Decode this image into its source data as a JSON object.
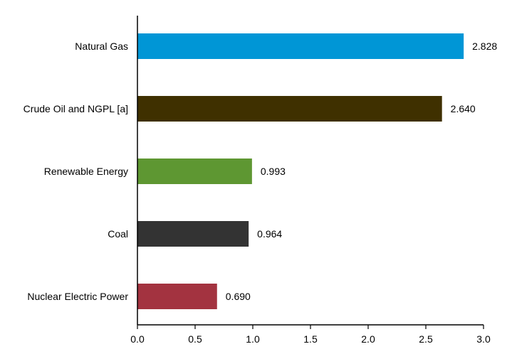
{
  "chart_data": {
    "type": "bar",
    "orientation": "horizontal",
    "title": "",
    "xlabel": "",
    "ylabel": "",
    "categories": [
      "Natural Gas",
      "Crude Oil and NGPL [a]",
      "Renewable Energy",
      "Coal",
      "Nuclear Electric Power"
    ],
    "values": [
      2.828,
      2.64,
      0.993,
      0.964,
      0.69
    ],
    "value_labels": [
      "2.828",
      "2.640",
      "0.993",
      "0.964",
      "0.690"
    ],
    "colors": [
      "#0096D6",
      "#3F3000",
      "#5E9732",
      "#333333",
      "#A33340"
    ],
    "xlim": [
      0,
      3.0
    ],
    "x_ticks": [
      0,
      0.5,
      1.0,
      1.5,
      2.0,
      2.5,
      3.0
    ],
    "x_tick_labels": [
      "0.0",
      "0.5",
      "1.0",
      "1.5",
      "2.0",
      "2.5",
      "3.0"
    ],
    "grid": false,
    "legend": "none"
  }
}
